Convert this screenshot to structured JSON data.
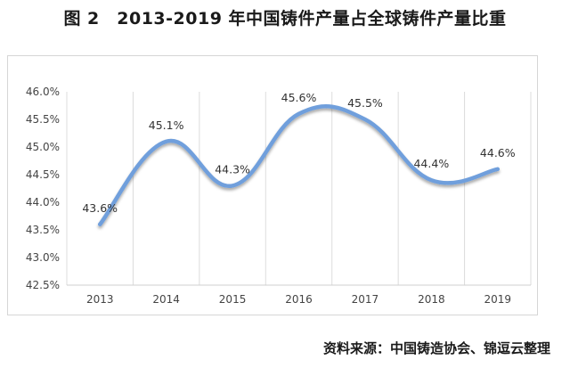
{
  "figure": {
    "title": "图 2　2013-2019 年中国铸件产量占全球铸件产量比重",
    "source": "资料来源：中国铸造协会、锦逗云整理"
  },
  "chart_data": {
    "type": "line",
    "title": "",
    "xlabel": "",
    "ylabel": "",
    "categories": [
      "2013",
      "2014",
      "2015",
      "2016",
      "2017",
      "2018",
      "2019"
    ],
    "series": [
      {
        "values": [
          43.6,
          45.1,
          44.3,
          45.6,
          45.5,
          44.4,
          44.6
        ]
      }
    ],
    "data_labels": [
      "43.6%",
      "45.1%",
      "44.3%",
      "45.6%",
      "45.5%",
      "44.4%",
      "44.6%"
    ],
    "ylim": [
      42.5,
      46.0
    ],
    "yticks": [
      42.5,
      43.0,
      43.5,
      44.0,
      44.5,
      45.0,
      45.5,
      46.0
    ],
    "ytick_labels": [
      "42.5%",
      "43.0%",
      "43.5%",
      "44.0%",
      "44.5%",
      "45.0%",
      "45.5%",
      "46.0%"
    ],
    "grid": "vertical",
    "line_color": "#6f9fdc",
    "smooth": true,
    "legend": "none"
  }
}
